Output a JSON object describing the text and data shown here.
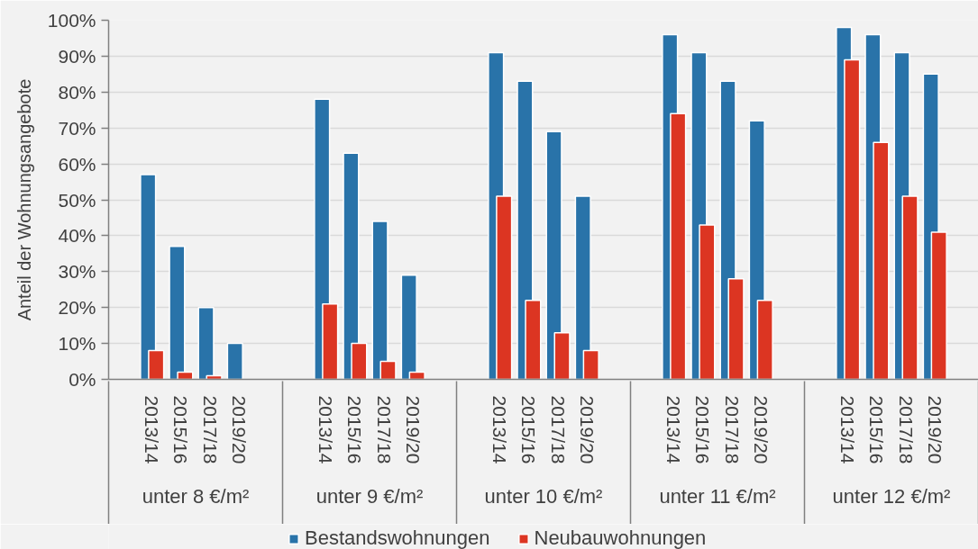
{
  "chart_data": {
    "type": "bar",
    "ylabel": "Anteil der Wohnungsangebote",
    "categories": [
      null,
      "2013/14",
      "2015/16",
      "2017/18",
      "2019/20",
      null,
      null,
      "2013/14",
      "2015/16",
      "2017/18",
      "2019/20",
      null,
      null,
      "2013/14",
      "2015/16",
      "2017/18",
      "2019/20",
      null,
      null,
      "2013/14",
      "2015/16",
      "2017/18",
      "2019/20",
      null,
      null,
      "2013/14",
      "2015/16",
      "2017/18",
      "2019/20",
      null
    ],
    "annotations": [
      "unter 8 €/m²",
      "unter 9 €/m²",
      "unter 10 €/m²",
      "unter 11 €/m²",
      "unter 12 €/m²"
    ],
    "series": [
      {
        "name": "Bestandswohnungen",
        "color": "#2973a9",
        "values": [
          null,
          57,
          37,
          20,
          10,
          null,
          null,
          78,
          63,
          44,
          29,
          null,
          null,
          91,
          83,
          69,
          51,
          null,
          null,
          96,
          91,
          83,
          72,
          null,
          null,
          98,
          96,
          91,
          85,
          null
        ]
      },
      {
        "name": "Neubauwohnungen",
        "color": "#dc3522",
        "values": [
          null,
          8,
          2,
          1,
          null,
          null,
          null,
          21,
          10,
          5,
          2,
          null,
          null,
          51,
          22,
          13,
          8,
          null,
          null,
          74,
          43,
          28,
          22,
          null,
          null,
          89,
          66,
          51,
          41,
          null
        ]
      }
    ],
    "ylim": [
      0,
      100
    ],
    "yticks": [
      {
        "value": 0,
        "label": "0%"
      },
      {
        "value": 10,
        "label": "10%"
      },
      {
        "value": 20,
        "label": "20%"
      },
      {
        "value": 30,
        "label": "30%"
      },
      {
        "value": 40,
        "label": "40%"
      },
      {
        "value": 50,
        "label": "50%"
      },
      {
        "value": 60,
        "label": "60%"
      },
      {
        "value": 70,
        "label": "70%"
      },
      {
        "value": 80,
        "label": "80%"
      },
      {
        "value": 90,
        "label": "90%"
      },
      {
        "value": 100,
        "label": "100%"
      }
    ],
    "grid": "y",
    "legend": "bottom"
  }
}
